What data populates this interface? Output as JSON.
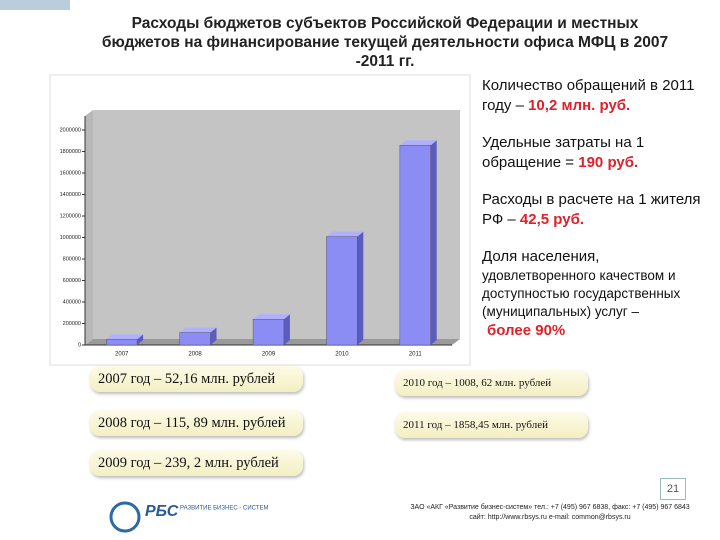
{
  "slide": {
    "title": "Расходы бюджетов субъектов Российской Федерации и местных бюджетов на финансирование текущей деятельности офиса МФЦ в 2007 -2011 гг.",
    "info": [
      {
        "text": "Количество обращений в 2011 году –",
        "highlight": "10,2 млн. руб."
      },
      {
        "text": "Удельные затраты на 1 обращение =",
        "highlight": "190 руб."
      },
      {
        "text": "Расходы в расчете на 1 жителя РФ –",
        "highlight": "42,5 руб."
      },
      {
        "text": "Доля населения,",
        "subtext": "удовлетворенного качеством и доступностью государственных (муниципальных) услуг –",
        "highlight": "более 90%"
      }
    ],
    "notes": [
      "2007 год – 52,16 млн. рублей",
      "2008 год – 115, 89 млн. рублей",
      "2009 год – 239, 2 млн. рублей",
      "2010 год – 1008, 62 млн. рублей",
      "2011 год – 1858,45 млн. рублей"
    ],
    "page_number": "21",
    "logo": {
      "abbr": "РБС",
      "name": "РАЗВИТИЕ БИЗНЕС - СИСТЕМ"
    },
    "footer": [
      "ЗАО «АКГ «Развитие бизнес-систем» тел.: +7 (495) 967 6838, факс: +7 (495) 967 6843",
      "сайт: http://www.rbsys.ru e-mail: common@rbsys.ru"
    ]
  },
  "chart_data": {
    "type": "bar3d",
    "categories": [
      "2007",
      "2008",
      "2009",
      "2010",
      "2011"
    ],
    "values": [
      52160,
      115890,
      239200,
      1008620,
      1858450
    ],
    "color": "#8c8cf5",
    "ylim": [
      0,
      2000000
    ],
    "yticks": [
      0,
      200000,
      400000,
      600000,
      800000,
      1000000,
      1200000,
      1400000,
      1600000,
      1800000,
      2000000
    ]
  }
}
